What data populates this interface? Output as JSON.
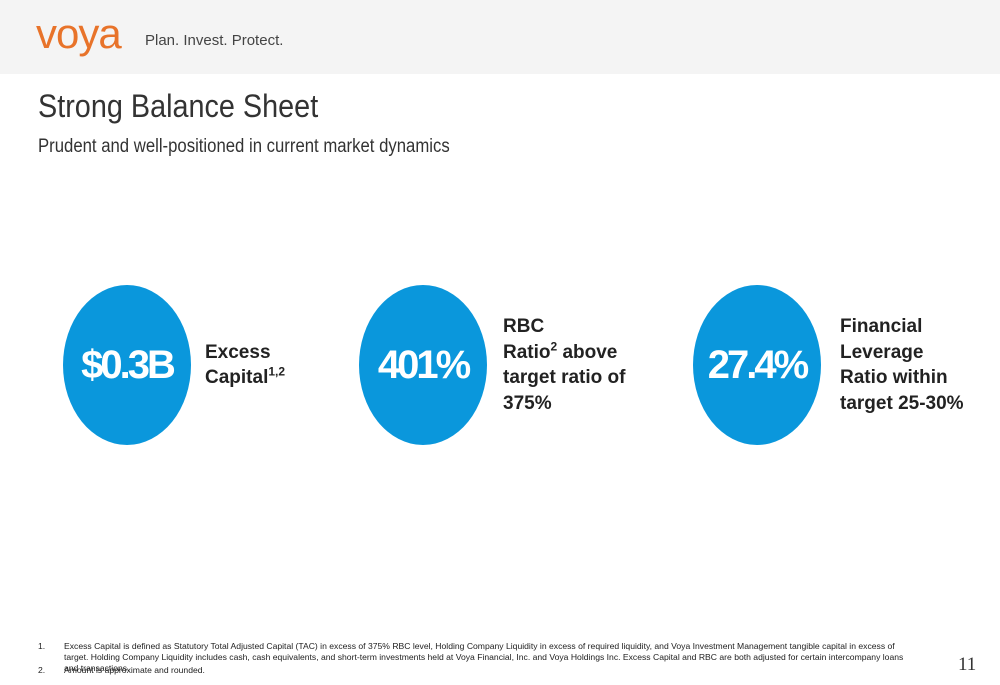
{
  "header": {
    "logo": "voya",
    "tagline": "Plan. Invest. Protect."
  },
  "title": "Strong Balance Sheet",
  "subtitle": "Prudent and well-positioned in current market dynamics",
  "stats": [
    {
      "value": "$0.3B",
      "lines": [
        {
          "text": "Excess"
        },
        {
          "text": "Capital",
          "sup": "1,2"
        }
      ]
    },
    {
      "value": "401%",
      "lines": [
        {
          "text": "RBC"
        },
        {
          "text": "Ratio",
          "sup": "2",
          "after": " above"
        },
        {
          "text": "target ratio of"
        },
        {
          "text": "375%"
        }
      ]
    },
    {
      "value": "27.4%",
      "lines": [
        {
          "text": "Financial"
        },
        {
          "text": "Leverage"
        },
        {
          "text": "Ratio within"
        },
        {
          "text": "target 25-30%"
        }
      ]
    }
  ],
  "footnotes": [
    {
      "number": "1.",
      "text": "Excess Capital is defined as Statutory Total Adjusted Capital (TAC) in excess of 375% RBC level, Holding Company Liquidity in excess of required liquidity, and Voya Investment Management tangible capital in excess of target. Holding Company Liquidity includes cash, cash equivalents, and short-term investments held at Voya Financial, Inc. and Voya Holdings Inc.  Excess Capital and RBC are both adjusted for certain intercompany loans and transactions."
    },
    {
      "number": "2.",
      "text": "Amount is approximate and rounded."
    }
  ],
  "page_number": "11"
}
